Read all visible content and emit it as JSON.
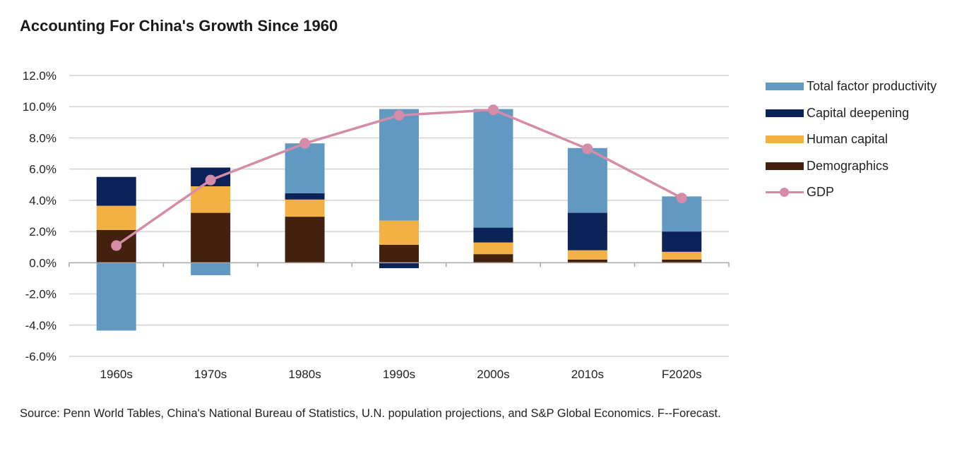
{
  "chart_data": {
    "type": "bar",
    "stacked": true,
    "title": "Accounting For China's Growth Since 1960",
    "xlabel": "",
    "ylabel": "",
    "categories": [
      "1960s",
      "1970s",
      "1980s",
      "1990s",
      "2000s",
      "2010s",
      "F2020s"
    ],
    "ylim": [
      -6,
      12
    ],
    "yticks": [
      -6,
      -4,
      -2,
      0,
      2,
      4,
      6,
      8,
      10,
      12
    ],
    "ytick_labels": [
      "-6.0%",
      "-4.0%",
      "-2.0%",
      "0.0%",
      "2.0%",
      "4.0%",
      "6.0%",
      "8.0%",
      "10.0%",
      "12.0%"
    ],
    "grid": true,
    "legend_position": "right",
    "series": [
      {
        "name": "Demographics",
        "kind": "bar",
        "color": "#44200f",
        "values": [
          2.1,
          3.2,
          2.95,
          1.15,
          0.55,
          0.2,
          0.2
        ]
      },
      {
        "name": "Human capital",
        "kind": "bar",
        "color": "#f2b142",
        "values": [
          1.55,
          1.7,
          1.1,
          1.55,
          0.75,
          0.6,
          0.5
        ]
      },
      {
        "name": "Capital deepening",
        "kind": "bar",
        "color": "#0b2359",
        "values": [
          1.85,
          1.2,
          0.4,
          -0.35,
          0.95,
          2.4,
          1.3
        ]
      },
      {
        "name": "Total factor productivity",
        "kind": "bar",
        "color": "#6299c1",
        "values": [
          -4.35,
          -0.8,
          3.2,
          7.15,
          7.6,
          4.15,
          2.25
        ]
      },
      {
        "name": "GDP",
        "kind": "line",
        "color": "#d48ca8",
        "values": [
          1.1,
          5.3,
          7.65,
          9.45,
          9.8,
          7.3,
          4.15
        ]
      }
    ],
    "legend_order": [
      "Total factor productivity",
      "Capital deepening",
      "Human capital",
      "Demographics",
      "GDP"
    ]
  },
  "source": "Source: Penn World Tables, China's National Bureau of Statistics, U.N. population projections, and S&P Global Economics. F--Forecast."
}
